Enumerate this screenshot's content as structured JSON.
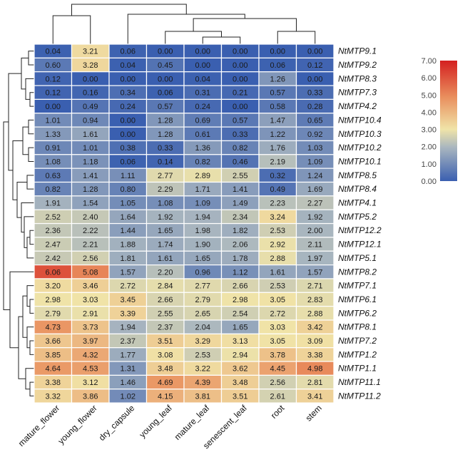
{
  "chart_data": {
    "type": "heatmap",
    "title": "",
    "columns": [
      "mature_flower",
      "young_flower",
      "dry_capsule",
      "young_leaf",
      "mature_leaf",
      "senescent_leaf",
      "root",
      "stem"
    ],
    "rows": [
      "NtMTP9.1",
      "NtMTP9.2",
      "NtMTP8.3",
      "NtMTP7.3",
      "NtMTP4.2",
      "NtMTP10.4",
      "NtMTP10.3",
      "NtMTP10.2",
      "NtMTP10.1",
      "NtMTP8.5",
      "NtMTP8.4",
      "NtMTP4.1",
      "NtMTP5.2",
      "NtMTP12.2",
      "NtMTP12.1",
      "NtMTP5.1",
      "NtMTP8.2",
      "NtMTP7.1",
      "NtMTP6.1",
      "NtMTP6.2",
      "NtMTP8.1",
      "NtMTP7.2",
      "NtMTP1.2",
      "NtMTP1.1",
      "NtMTP11.1",
      "NtMTP11.2"
    ],
    "values": [
      [
        0.04,
        3.21,
        0.06,
        0.0,
        0.0,
        0.0,
        0.0,
        0.0
      ],
      [
        0.6,
        3.28,
        0.04,
        0.45,
        0.0,
        0.0,
        0.06,
        0.12
      ],
      [
        0.12,
        0.0,
        0.0,
        0.0,
        0.04,
        0.0,
        1.26,
        0.0
      ],
      [
        0.12,
        0.16,
        0.34,
        0.06,
        0.31,
        0.21,
        0.57,
        0.33
      ],
      [
        0.0,
        0.49,
        0.24,
        0.57,
        0.24,
        0.0,
        0.58,
        0.28
      ],
      [
        1.01,
        0.94,
        0.0,
        1.28,
        0.69,
        0.57,
        1.47,
        0.65
      ],
      [
        1.33,
        1.61,
        0.0,
        1.28,
        0.61,
        0.33,
        1.22,
        0.92
      ],
      [
        0.91,
        1.01,
        0.38,
        0.33,
        1.36,
        0.82,
        1.76,
        1.03
      ],
      [
        1.08,
        1.18,
        0.06,
        0.14,
        0.82,
        0.46,
        2.19,
        1.09
      ],
      [
        0.63,
        1.41,
        1.11,
        2.77,
        2.89,
        2.55,
        0.32,
        1.24
      ],
      [
        0.82,
        1.28,
        0.8,
        2.29,
        1.71,
        1.41,
        0.49,
        1.69
      ],
      [
        1.91,
        1.54,
        1.05,
        1.08,
        1.09,
        1.49,
        2.23,
        2.27
      ],
      [
        2.52,
        2.4,
        1.64,
        1.92,
        1.94,
        2.34,
        3.24,
        1.92
      ],
      [
        2.36,
        2.22,
        1.44,
        1.65,
        1.98,
        1.82,
        2.53,
        2.0
      ],
      [
        2.47,
        2.21,
        1.88,
        1.74,
        1.9,
        2.06,
        2.92,
        2.11
      ],
      [
        2.42,
        2.56,
        1.81,
        1.61,
        1.65,
        1.78,
        2.88,
        1.97
      ],
      [
        6.06,
        5.08,
        1.57,
        2.2,
        0.96,
        1.12,
        1.61,
        1.57
      ],
      [
        3.2,
        3.46,
        2.72,
        2.84,
        2.77,
        2.66,
        2.53,
        2.71
      ],
      [
        2.98,
        3.03,
        3.45,
        2.66,
        2.79,
        2.98,
        3.05,
        2.83
      ],
      [
        2.79,
        2.91,
        3.39,
        2.55,
        2.65,
        2.54,
        2.72,
        2.88
      ],
      [
        4.73,
        3.73,
        1.94,
        2.37,
        2.04,
        1.65,
        3.03,
        3.42
      ],
      [
        3.66,
        3.97,
        2.37,
        3.51,
        3.29,
        3.13,
        3.05,
        3.09
      ],
      [
        3.85,
        4.32,
        1.77,
        3.08,
        2.53,
        2.94,
        3.78,
        3.38
      ],
      [
        4.64,
        4.53,
        1.31,
        3.48,
        3.22,
        3.62,
        4.45,
        4.98
      ],
      [
        3.38,
        3.12,
        1.46,
        4.69,
        4.39,
        3.48,
        2.56,
        2.81
      ],
      [
        3.32,
        3.86,
        1.02,
        4.15,
        3.81,
        3.51,
        2.61,
        3.41
      ]
    ],
    "legend": {
      "min": 0,
      "max": 7,
      "ticks": [
        "7.00",
        "6.00",
        "5.00",
        "4.00",
        "3.00",
        "2.00",
        "1.00",
        "0.00"
      ],
      "colors": [
        "#3a5fb0",
        "#f0e4a8",
        "#d42020"
      ]
    },
    "grid_color": "#ffffff",
    "dendrograms": [
      "rows",
      "columns"
    ]
  }
}
